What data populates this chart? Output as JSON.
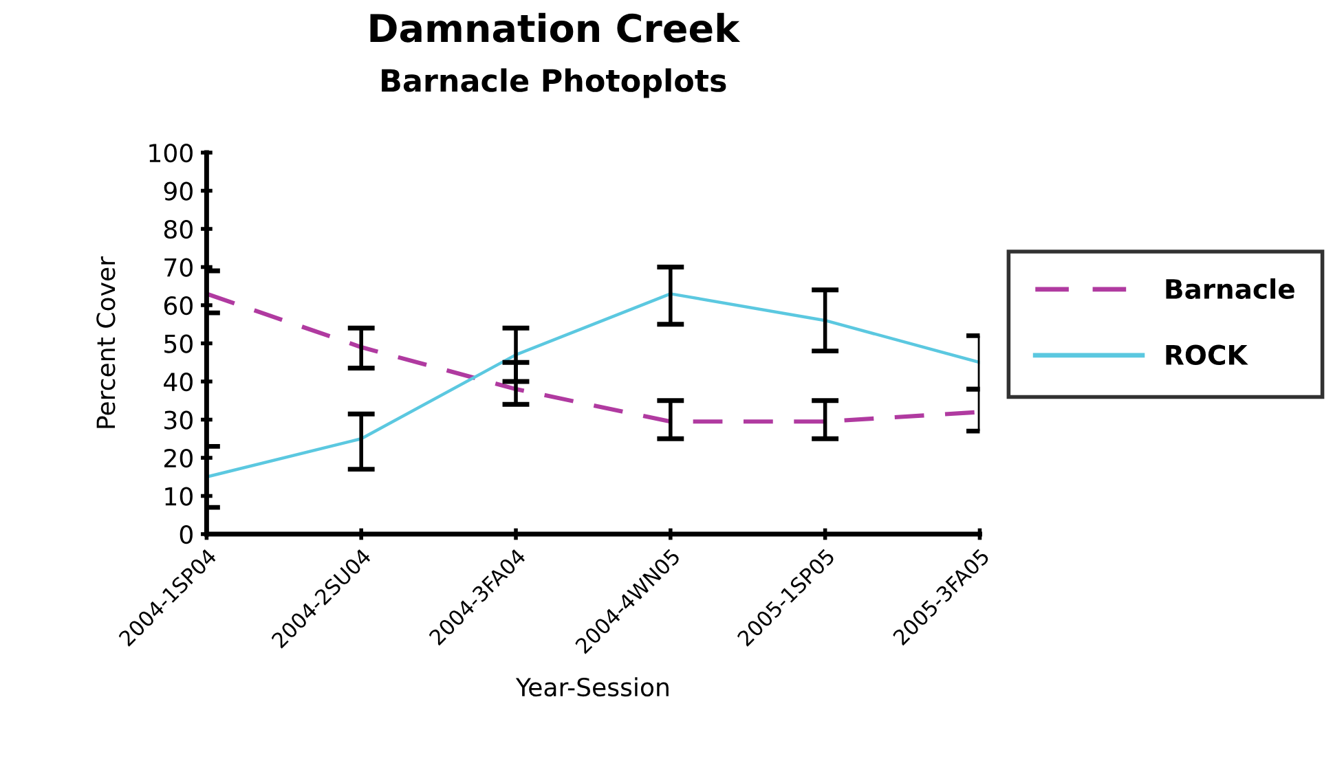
{
  "chart_data": {
    "type": "line",
    "title": "Damnation Creek",
    "subtitle": "Barnacle Photoplots",
    "xlabel": "Year-Session",
    "ylabel": "Percent Cover",
    "categories": [
      "2004-1SP04",
      "2004-2SU04",
      "2004-3FA04",
      "2004-4WN05",
      "2005-1SP05",
      "2005-3FA05"
    ],
    "series": [
      {
        "name": "Barnacle",
        "color": "#b03aa0",
        "line_style": "dashed",
        "values": [
          63,
          49,
          38,
          29.5,
          29.5,
          32
        ],
        "errors": [
          [
            58,
            69
          ],
          [
            43.5,
            54
          ],
          [
            34,
            45
          ],
          [
            25,
            35
          ],
          [
            25,
            35
          ],
          [
            27,
            38
          ]
        ]
      },
      {
        "name": "ROCK",
        "color": "#5bc8e0",
        "line_style": "solid",
        "values": [
          15,
          25,
          47,
          63,
          56,
          45
        ],
        "errors": [
          [
            7,
            23
          ],
          [
            17,
            31.5
          ],
          [
            40,
            54
          ],
          [
            55,
            70
          ],
          [
            48,
            64
          ],
          [
            38,
            52
          ]
        ]
      }
    ],
    "ylim": [
      0,
      100
    ],
    "yticks": [
      0,
      10,
      20,
      30,
      40,
      50,
      60,
      70,
      80,
      90,
      100
    ],
    "grid": false,
    "legend": "right",
    "marker": "none"
  }
}
